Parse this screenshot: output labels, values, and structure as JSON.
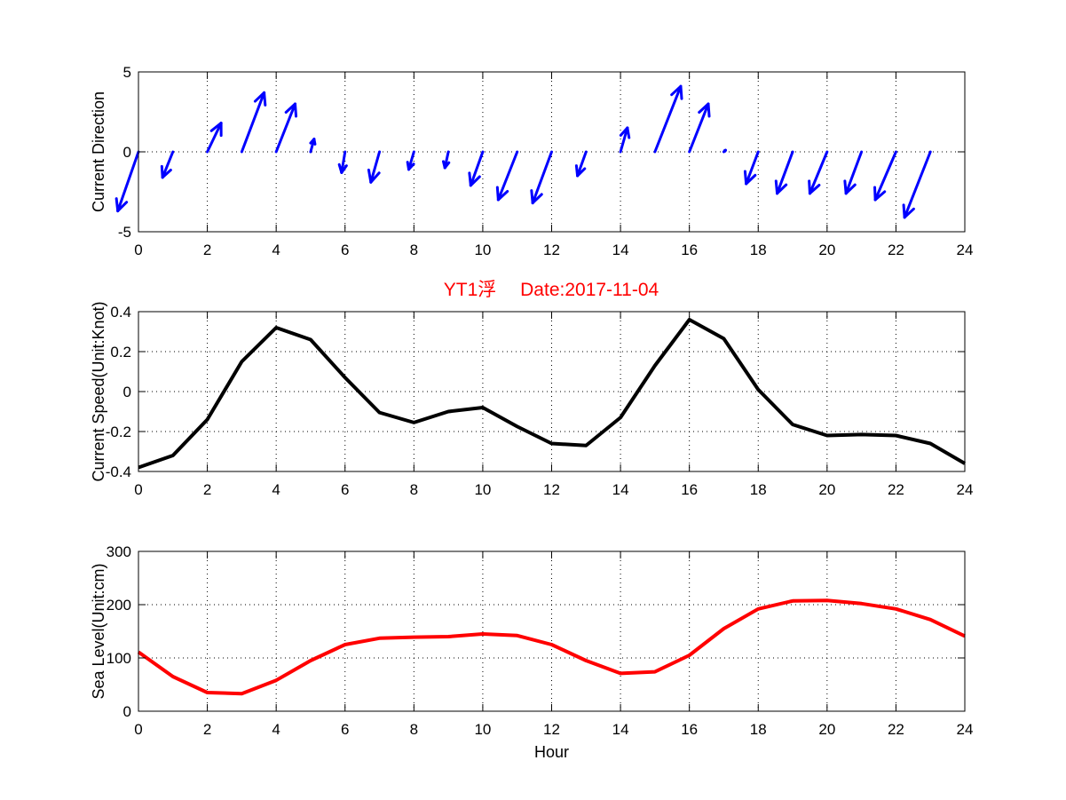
{
  "figure": {
    "title": "YT1浮　 Date:2017-11-04",
    "background": "#ffffff"
  },
  "chart_data": [
    {
      "type": "quiver",
      "name": "current-direction",
      "ylabel": "Current Direction",
      "xlabel": "",
      "xlim": [
        0,
        24
      ],
      "ylim": [
        -5,
        5
      ],
      "xticks": [
        0,
        2,
        4,
        6,
        8,
        10,
        12,
        14,
        16,
        18,
        20,
        22,
        24
      ],
      "yticks": [
        -5,
        0,
        5
      ],
      "grid": true,
      "color": "#0000ff",
      "x": [
        0,
        1,
        2,
        3,
        4,
        5,
        6,
        7,
        8,
        9,
        10,
        11,
        12,
        13,
        14,
        15,
        16,
        17,
        18,
        19,
        20,
        21,
        22,
        23,
        24
      ],
      "u": [
        -0.6,
        -0.3,
        0.4,
        0.65,
        0.55,
        0.1,
        -0.1,
        -0.25,
        -0.15,
        -0.1,
        -0.35,
        -0.55,
        -0.55,
        -0.25,
        0.2,
        0.75,
        0.55,
        0.05,
        -0.35,
        -0.45,
        -0.5,
        -0.45,
        -0.6,
        -0.75,
        0
      ],
      "v": [
        -3.7,
        -1.6,
        1.8,
        3.7,
        3.0,
        0.8,
        -1.3,
        -1.9,
        -1.1,
        -1.0,
        -2.1,
        -3.0,
        -3.2,
        -1.5,
        1.5,
        4.1,
        3.0,
        0.1,
        -2.0,
        -2.6,
        -2.6,
        -2.6,
        -3.0,
        -4.1,
        0
      ]
    },
    {
      "type": "line",
      "name": "current-speed",
      "ylabel": "Current Speed(Unit:Knot)",
      "xlabel": "",
      "xlim": [
        0,
        24
      ],
      "ylim": [
        -0.4,
        0.4
      ],
      "xticks": [
        0,
        2,
        4,
        6,
        8,
        10,
        12,
        14,
        16,
        18,
        20,
        22,
        24
      ],
      "yticks": [
        -0.4,
        -0.2,
        0,
        0.2,
        0.4
      ],
      "grid": true,
      "color": "#000000",
      "x": [
        0,
        1,
        2,
        3,
        4,
        5,
        6,
        7,
        8,
        9,
        10,
        11,
        12,
        13,
        14,
        15,
        16,
        17,
        18,
        19,
        20,
        21,
        22,
        23,
        24
      ],
      "y": [
        -0.38,
        -0.32,
        -0.14,
        0.15,
        0.32,
        0.26,
        0.07,
        -0.105,
        -0.155,
        -0.1,
        -0.08,
        -0.175,
        -0.26,
        -0.27,
        -0.13,
        0.13,
        0.36,
        0.265,
        0.01,
        -0.165,
        -0.22,
        -0.215,
        -0.22,
        -0.26,
        -0.36
      ]
    },
    {
      "type": "line",
      "name": "sea-level",
      "ylabel": "Sea Level(Unit:cm)",
      "xlabel": "Hour",
      "xlim": [
        0,
        24
      ],
      "ylim": [
        0,
        300
      ],
      "xticks": [
        0,
        2,
        4,
        6,
        8,
        10,
        12,
        14,
        16,
        18,
        20,
        22,
        24
      ],
      "yticks": [
        0,
        100,
        200,
        300
      ],
      "grid": true,
      "color": "#ff0000",
      "x": [
        0,
        1,
        2,
        3,
        4,
        5,
        6,
        7,
        8,
        9,
        10,
        11,
        12,
        13,
        14,
        15,
        16,
        17,
        18,
        19,
        20,
        21,
        22,
        23,
        24
      ],
      "y": [
        111,
        65,
        35,
        33,
        58,
        95,
        125,
        137,
        139,
        140,
        145,
        142,
        125,
        95,
        71,
        74,
        105,
        155,
        192,
        207,
        208,
        202,
        192,
        172,
        141
      ]
    }
  ]
}
